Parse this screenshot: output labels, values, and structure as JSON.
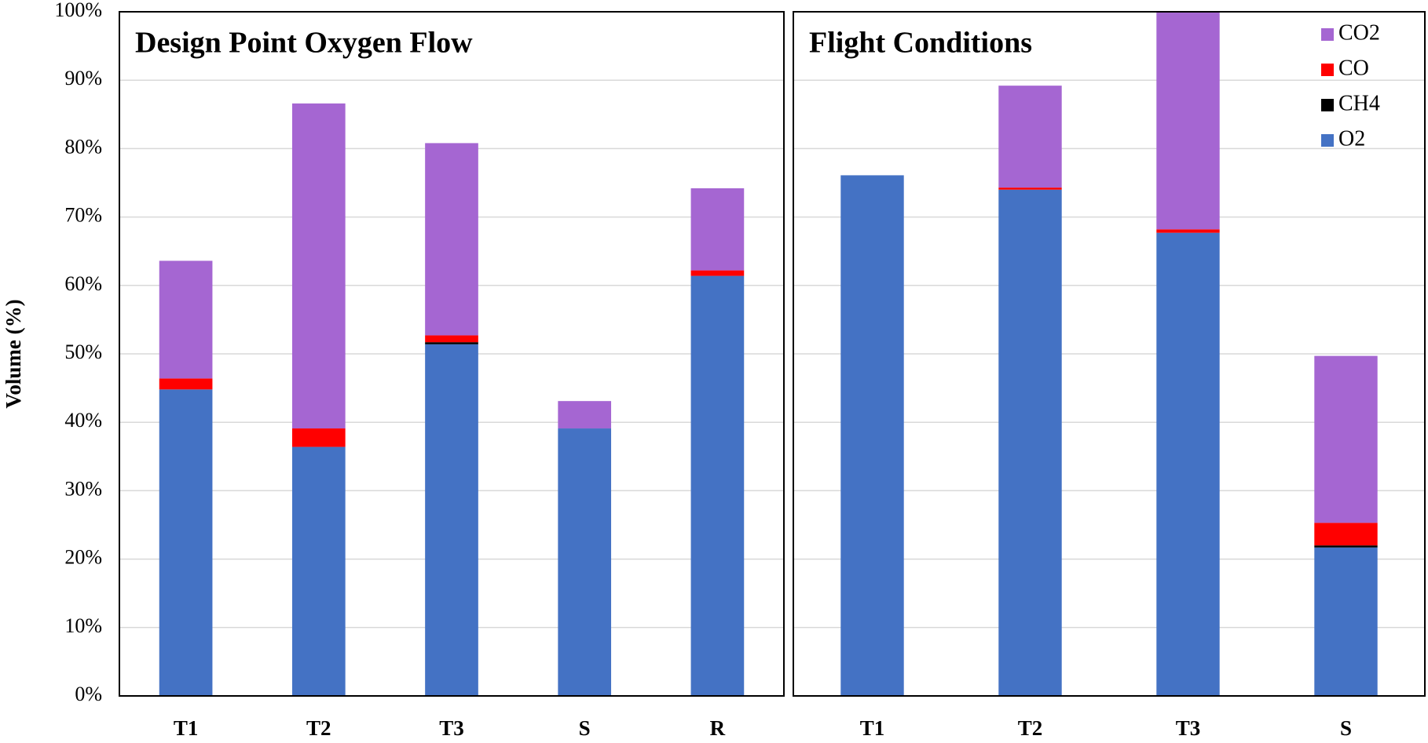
{
  "chart_data": {
    "type": "bar",
    "stacked": true,
    "ylabel": "Volume (%)",
    "ylim": [
      0,
      100
    ],
    "yticks": [
      {
        "value": 0,
        "label": "0%"
      },
      {
        "value": 10,
        "label": "10%"
      },
      {
        "value": 20,
        "label": "20%"
      },
      {
        "value": 30,
        "label": "30%"
      },
      {
        "value": 40,
        "label": "40%"
      },
      {
        "value": 50,
        "label": "50%"
      },
      {
        "value": 60,
        "label": "60%"
      },
      {
        "value": 70,
        "label": "70%"
      },
      {
        "value": 80,
        "label": "80%"
      },
      {
        "value": 90,
        "label": "90%"
      },
      {
        "value": 100,
        "label": "100%"
      }
    ],
    "grid": true,
    "legend": "top-right",
    "series": [
      {
        "name": "O2",
        "color": "#4472c4"
      },
      {
        "name": "CH4",
        "color": "#000000"
      },
      {
        "name": "CO",
        "color": "#ff0000"
      },
      {
        "name": "CO2",
        "color": "#a566d2"
      }
    ],
    "panels": [
      {
        "title": "Design Point Oxygen Flow",
        "categories": [
          "T1",
          "T2",
          "T3",
          "S",
          "R"
        ],
        "series": [
          {
            "values": [
              44.8,
              36.4,
              51.4,
              39.1,
              61.4
            ]
          },
          {
            "values": [
              0,
              0,
              0.3,
              0,
              0
            ]
          },
          {
            "values": [
              1.6,
              2.7,
              1.0,
              0,
              0.8
            ]
          },
          {
            "values": [
              17.2,
              47.5,
              28.1,
              4.0,
              12.0
            ]
          }
        ]
      },
      {
        "title": "Flight Conditions",
        "categories": [
          "T1",
          "T2",
          "T3",
          "S"
        ],
        "series": [
          {
            "values": [
              76.1,
              74.0,
              67.7,
              21.7
            ]
          },
          {
            "values": [
              0,
              0,
              0,
              0.3
            ]
          },
          {
            "values": [
              0,
              0.3,
              0.5,
              3.3
            ]
          },
          {
            "values": [
              0,
              14.9,
              31.8,
              24.4
            ]
          }
        ]
      }
    ]
  }
}
